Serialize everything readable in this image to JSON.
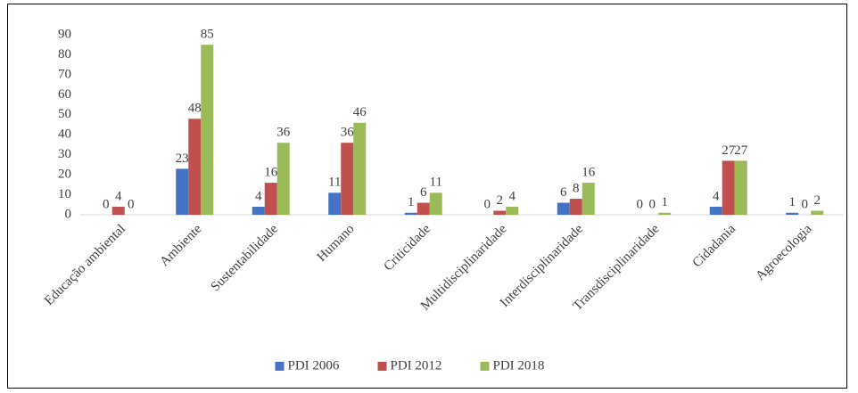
{
  "chart_data": {
    "type": "bar",
    "categories": [
      "Educação ambiental",
      "Ambiente",
      "Sustentabilidade",
      "Humano",
      "Criticidade",
      "Multidisciplinaridade",
      "Interdisciplinaridade",
      "Transdisciplinaridade",
      "Cidadania",
      "Agroecologia"
    ],
    "series": [
      {
        "name": "PDI 2006",
        "color": "#4472c4",
        "values": [
          0,
          23,
          4,
          11,
          1,
          0,
          6,
          0,
          4,
          1
        ]
      },
      {
        "name": "PDI 2012",
        "color": "#c0504d",
        "values": [
          4,
          48,
          16,
          36,
          6,
          2,
          8,
          0,
          27,
          0
        ]
      },
      {
        "name": "PDI 2018",
        "color": "#9bbb59",
        "values": [
          0,
          85,
          36,
          46,
          11,
          4,
          16,
          1,
          27,
          2
        ]
      }
    ],
    "ylim": [
      0,
      90
    ],
    "yticks": [
      0,
      10,
      20,
      30,
      40,
      50,
      60,
      70,
      80,
      90
    ],
    "grid": false,
    "legend": "bottom"
  }
}
